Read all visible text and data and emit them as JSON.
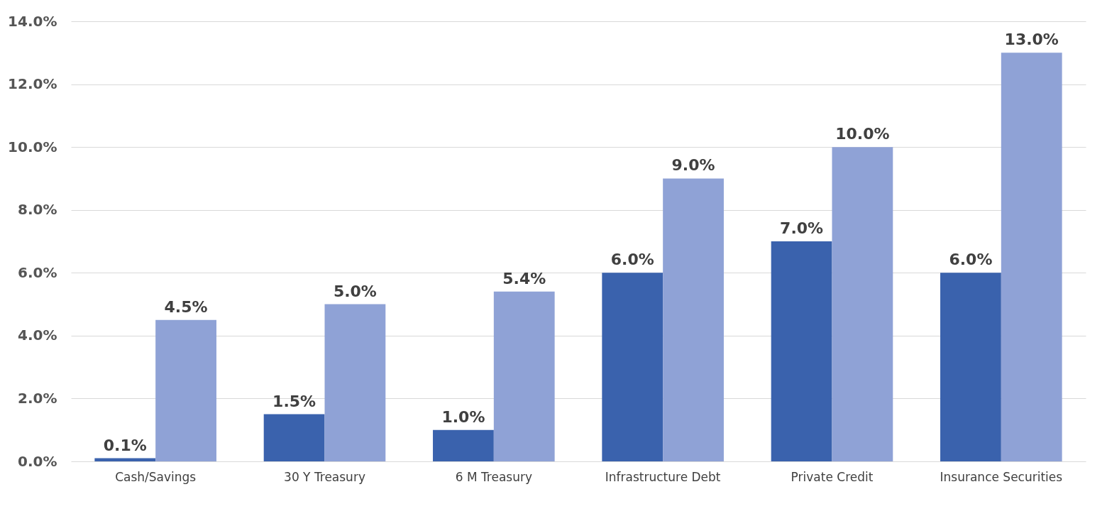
{
  "chart_data": {
    "type": "bar",
    "categories": [
      "Cash/Savings",
      "30 Y Treasury",
      "6 M Treasury",
      "Infrastructure Debt",
      "Private Credit",
      "Insurance Securities"
    ],
    "series": [
      {
        "color": "#3a62ad",
        "values": [
          0.1,
          1.5,
          1.0,
          6.0,
          7.0,
          6.0
        ],
        "value_labels": [
          "0.1%",
          "1.5%",
          "1.0%",
          "6.0%",
          "7.0%",
          "6.0%"
        ]
      },
      {
        "color": "#8fa2d6",
        "values": [
          4.5,
          5.0,
          5.4,
          9.0,
          10.0,
          13.0
        ],
        "value_labels": [
          "4.5%",
          "5.0%",
          "5.4%",
          "9.0%",
          "10.0%",
          "13.0%"
        ]
      }
    ],
    "ylim": [
      0,
      14
    ],
    "yticks": [
      {
        "value": 0,
        "label": "0.0%"
      },
      {
        "value": 2,
        "label": "2.0%"
      },
      {
        "value": 4,
        "label": "4.0%"
      },
      {
        "value": 6,
        "label": "6.0%"
      },
      {
        "value": 8,
        "label": "8.0%"
      },
      {
        "value": 10,
        "label": "10.0%"
      },
      {
        "value": 12,
        "label": "12.0%"
      },
      {
        "value": 14,
        "label": "14.0%"
      }
    ],
    "grid": "y"
  }
}
